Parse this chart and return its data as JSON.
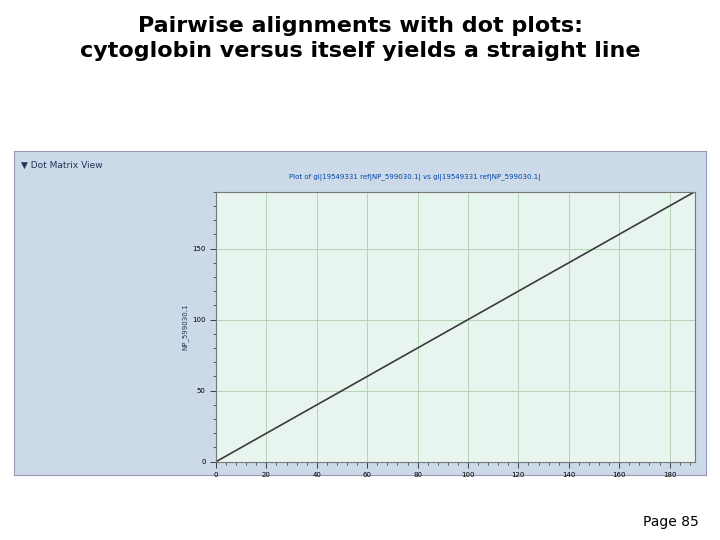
{
  "title_line1": "Pairwise alignments with dot plots:",
  "title_line2": "cytoglobin versus itself yields a straight line",
  "title_fontsize": 16,
  "page_label": "Page 85",
  "panel_label": "▼ Dot Matrix View",
  "plot_title": "Plot of gi|19549331 ref|NP_599030.1| vs gi|19549331 ref|NP_599030.1|",
  "x_ticks": [
    0,
    20,
    40,
    60,
    80,
    100,
    120,
    140,
    160,
    180
  ],
  "x_tick_labels": [
    "0",
    "20",
    "40",
    "60",
    "80",
    "100",
    "120",
    "140",
    "160",
    "180"
  ],
  "x_max": 190,
  "y_max": 190,
  "line_color": "#3a3a3a",
  "plot_bg_color": "#e8f5ee",
  "panel_bg": "#ccd9e8",
  "outer_bg": "#ffffff",
  "grid_color": "#b8d4b8",
  "ylabel": "NP_599030.1",
  "panel_border_color": "#9999bb",
  "plot_border_color": "#777777"
}
